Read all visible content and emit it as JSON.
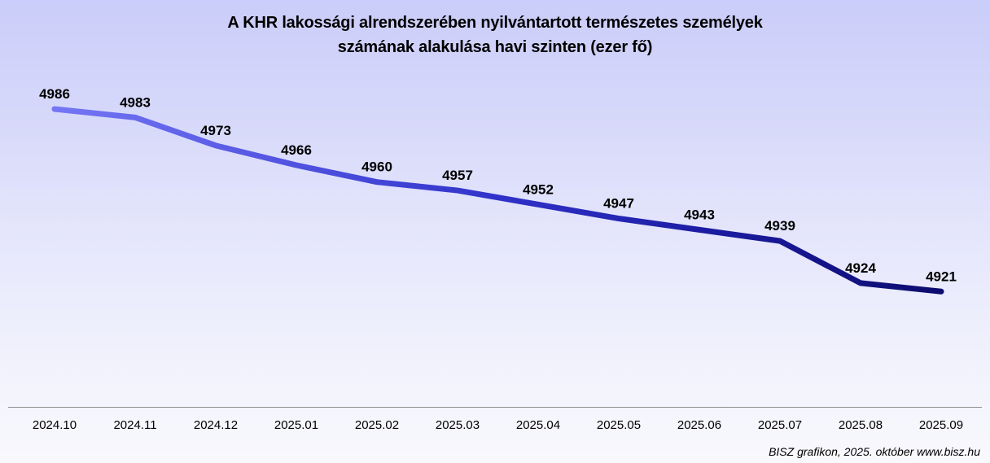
{
  "chart_data": {
    "type": "line",
    "title_lines": [
      "A KHR lakossági alrendszerében nyilvántartott természetes személyek",
      "számának alakulása havi szinten (ezer fő)"
    ],
    "categories": [
      "2024.10",
      "2024.11",
      "2024.12",
      "2025.01",
      "2025.02",
      "2025.03",
      "2025.04",
      "2025.05",
      "2025.06",
      "2025.07",
      "2025.08",
      "2025.09"
    ],
    "values": [
      4986,
      4983,
      4973,
      4966,
      4960,
      4957,
      4952,
      4947,
      4943,
      4939,
      4924,
      4921
    ],
    "unit": "ezer fő",
    "data_labels_visible": true,
    "y_axis_visible": false,
    "gridlines": false,
    "legend": "none"
  },
  "footer": {
    "attribution": "BISZ grafikon, 2025. október www.bisz.hu"
  },
  "colors": {
    "line_gradient": [
      "#7476f4",
      "#5355e2",
      "#3032c9",
      "#1b1ba0",
      "#0c0c6e"
    ],
    "background_top": "#cbcdfa",
    "background_bottom": "#f8f8fd",
    "label_text": "#000000",
    "axis_line": "#8c8c8c"
  }
}
